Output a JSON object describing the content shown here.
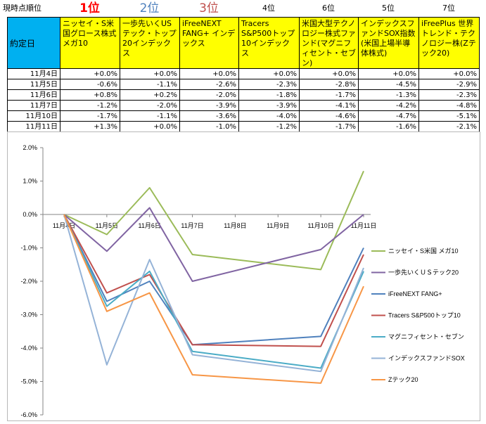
{
  "table": {
    "rank_label": "現時点順位",
    "date_header": "約定日",
    "ranks": [
      "1位",
      "2位",
      "3位",
      "4位",
      "6位",
      "5位",
      "7位"
    ],
    "rank_colors": [
      "#ff0000",
      "#4f81bd",
      "#c0504d",
      "#000000",
      "#000000",
      "#000000",
      "#000000"
    ],
    "funds": [
      "ニッセイ・S米国グロース株式メガ10",
      "一歩先いくUSテック・トップ20インデックス",
      "iFreeNEXT FANG+ インデックス",
      "Tracers S&P500トップ10インデックス",
      "米国大型テクノロジー株式ファンド(マグニフィセント・セブン)",
      "インデックスファンドSOX指数(米国上場半導体株式)",
      "iFreePlus 世界トレンド・テクノロジー株(Zテック20)"
    ],
    "rows": [
      {
        "date": "11月4日",
        "values": [
          "+0.0%",
          "+0.0%",
          "+0.0%",
          "+0.0%",
          "+0.0%",
          "+0.0%",
          "+0.0%"
        ]
      },
      {
        "date": "11月5日",
        "values": [
          "-0.6%",
          "-1.1%",
          "-2.6%",
          "-2.3%",
          "-2.8%",
          "-4.5%",
          "-2.9%"
        ]
      },
      {
        "date": "11月6日",
        "values": [
          "+0.8%",
          "+0.2%",
          "-2.0%",
          "-1.8%",
          "-1.7%",
          "-1.3%",
          "-2.3%"
        ]
      },
      {
        "date": "11月7日",
        "values": [
          "-1.2%",
          "-2.0%",
          "-3.9%",
          "-3.9%",
          "-4.1%",
          "-4.2%",
          "-4.8%"
        ]
      },
      {
        "date": "11月10日",
        "values": [
          "-1.7%",
          "-1.1%",
          "-3.6%",
          "-4.0%",
          "-4.6%",
          "-4.7%",
          "-5.1%"
        ]
      },
      {
        "date": "11月11日",
        "values": [
          "+1.3%",
          "+0.0%",
          "-1.0%",
          "-1.2%",
          "-1.7%",
          "-1.6%",
          "-2.1%"
        ]
      }
    ]
  },
  "chart_data": {
    "type": "line",
    "title": "",
    "xlabel": "",
    "ylabel": "",
    "categories": [
      "11月4日",
      "11月5日",
      "11月6日",
      "11月7日",
      "11月8日",
      "11月9日",
      "11月10日",
      "11月11日"
    ],
    "ylim": [
      -6.0,
      2.0
    ],
    "yticks": [
      2.0,
      1.0,
      0.0,
      -1.0,
      -2.0,
      -3.0,
      -4.0,
      -5.0,
      -6.0
    ],
    "ytick_labels": [
      "2.0%",
      "1.0%",
      "0.0%",
      "-1.0%",
      "-2.0%",
      "-3.0%",
      "-4.0%",
      "-5.0%",
      "-6.0%"
    ],
    "grid": false,
    "legend_position": "right",
    "series": [
      {
        "name": "ニッセイ・S米国 メガ10",
        "color": "#9bbb59",
        "values": [
          0.0,
          -0.6,
          0.8,
          -1.2,
          null,
          null,
          -1.65,
          1.3
        ]
      },
      {
        "name": "一歩先いくＵＳテック20",
        "color": "#8064a2",
        "values": [
          0.0,
          -1.1,
          0.2,
          -2.0,
          null,
          null,
          -1.05,
          0.0
        ]
      },
      {
        "name": "iFreeNEXT FANG+",
        "color": "#4f81bd",
        "values": [
          0.0,
          -2.6,
          -2.0,
          -3.9,
          null,
          null,
          -3.65,
          -1.0
        ]
      },
      {
        "name": "Tracers S&P500トップ10",
        "color": "#c0504d",
        "values": [
          0.0,
          -2.35,
          -1.8,
          -3.9,
          null,
          null,
          -3.95,
          -1.2
        ]
      },
      {
        "name": "マグニフィセント・セブン",
        "color": "#4bacc6",
        "values": [
          0.0,
          -2.75,
          -1.7,
          -4.1,
          null,
          null,
          -4.6,
          -1.7
        ]
      },
      {
        "name": "インデックスファンドSOX",
        "color": "#95b3d7",
        "values": [
          0.0,
          -4.5,
          -1.35,
          -4.2,
          null,
          null,
          -4.7,
          -1.6
        ]
      },
      {
        "name": "Zテック20",
        "color": "#f79646",
        "values": [
          0.0,
          -2.9,
          -2.35,
          -4.8,
          null,
          null,
          -5.05,
          -2.15
        ]
      }
    ]
  }
}
